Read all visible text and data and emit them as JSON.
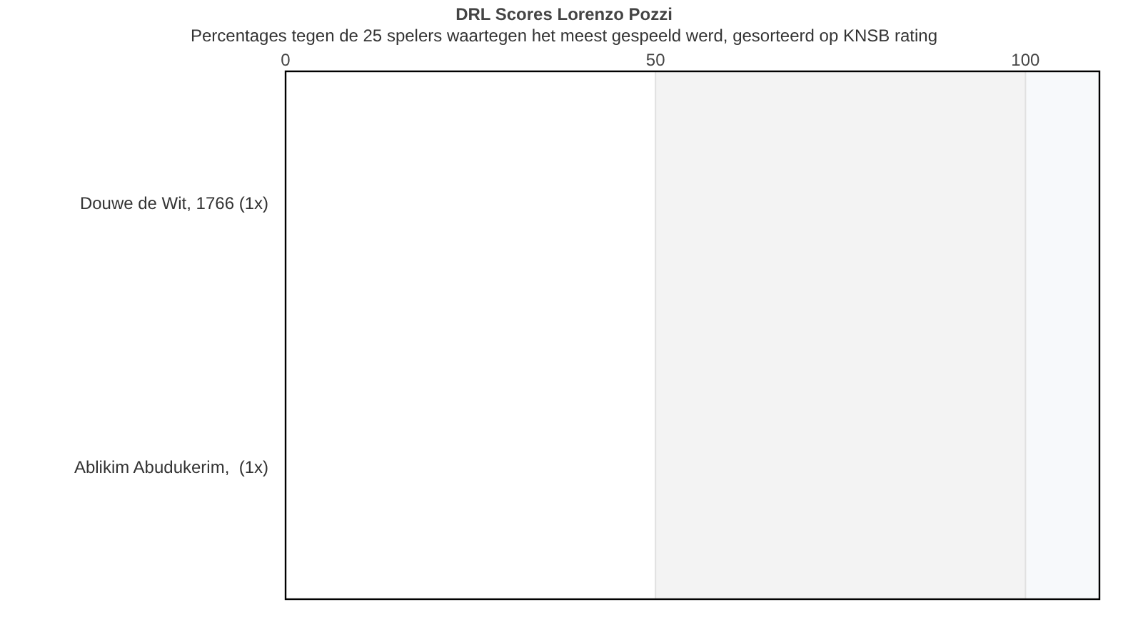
{
  "chart_data": {
    "type": "bar",
    "orientation": "horizontal",
    "title": "DRL Scores Lorenzo Pozzi",
    "subtitle": "Percentages tegen de 25 spelers waartegen het meest gespeeld werd, gesorteerd op KNSB rating",
    "categories": [
      "Douwe de Wit, 1766 (1x)",
      "Ablikim Abudukerim,  (1x)"
    ],
    "values": [
      0,
      0
    ],
    "xlim": [
      0,
      110
    ],
    "xticks": [
      0,
      50,
      100
    ],
    "grid": "x",
    "bands": [
      {
        "axis": "x",
        "from": 50,
        "to": 100,
        "color": "#f3f3f3"
      },
      {
        "axis": "x",
        "from": 100,
        "to": 110,
        "color": "#f7f9fb"
      }
    ]
  }
}
